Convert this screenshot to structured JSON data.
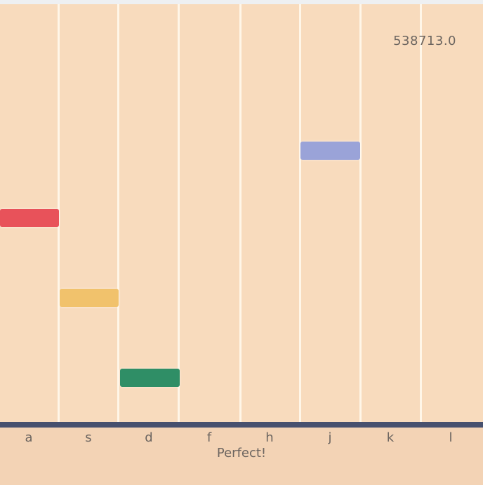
{
  "score": "538713.0",
  "feedback": "Perfect!",
  "lanes": [
    {
      "key": "a"
    },
    {
      "key": "s"
    },
    {
      "key": "d"
    },
    {
      "key": "f"
    },
    {
      "key": "h"
    },
    {
      "key": "j"
    },
    {
      "key": "k"
    },
    {
      "key": "l"
    }
  ],
  "notes": [
    {
      "lane": "a",
      "color": "#e8525a"
    },
    {
      "lane": "s",
      "color": "#f1c26c"
    },
    {
      "lane": "d",
      "color": "#2f8e66"
    },
    {
      "lane": "j",
      "color": "#9aa3d8"
    }
  ]
}
